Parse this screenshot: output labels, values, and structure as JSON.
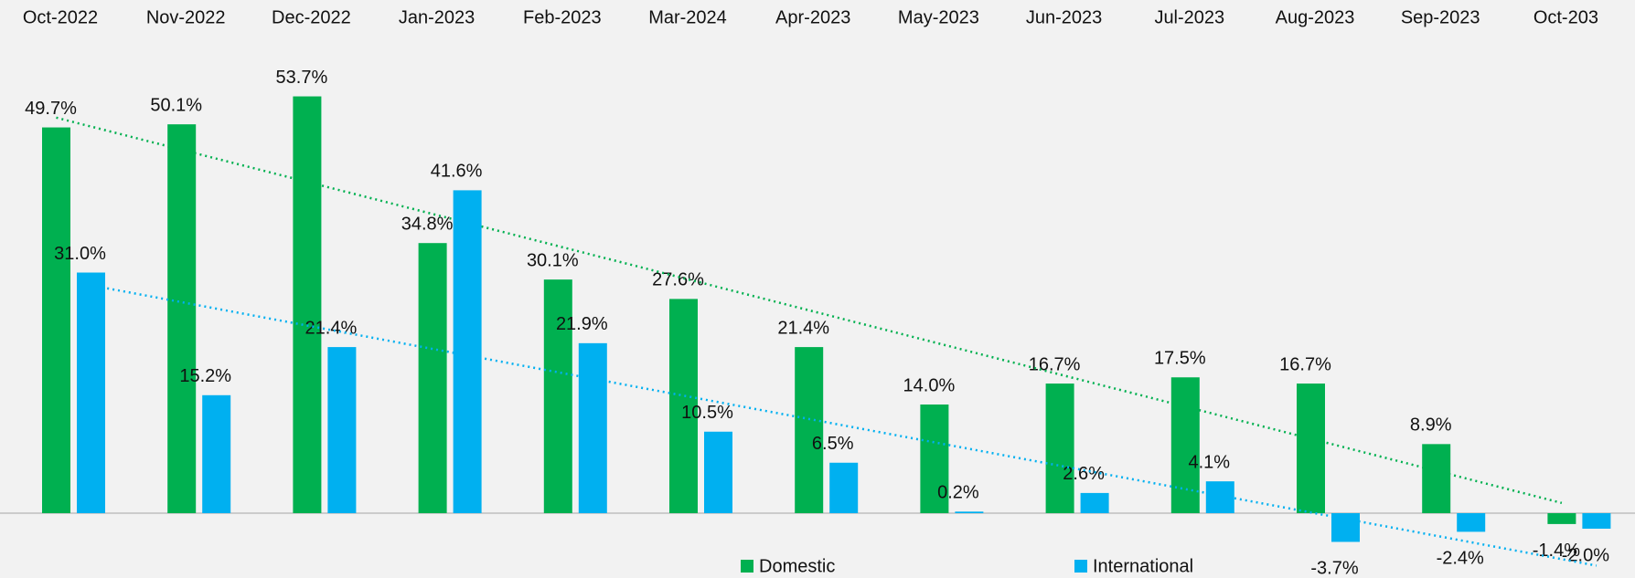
{
  "chart_data": {
    "type": "bar",
    "categories": [
      "Oct-2022",
      "Nov-2022",
      "Dec-2022",
      "Jan-2023",
      "Feb-2023",
      "Mar-2024",
      "Apr-2023",
      "May-2023",
      "Jun-2023",
      "Jul-2023",
      "Aug-2023",
      "Sep-2023",
      "Oct-203"
    ],
    "series": [
      {
        "name": "Domestic",
        "color": "#00b050",
        "values": [
          49.7,
          50.1,
          53.7,
          34.8,
          30.1,
          27.6,
          21.4,
          14.0,
          16.7,
          17.5,
          16.7,
          8.9,
          -1.4
        ],
        "value_labels": [
          "49.7%",
          "50.1%",
          "53.7%",
          "34.8%",
          "30.1%",
          "27.6%",
          "21.4%",
          "14.0%",
          "16.7%",
          "17.5%",
          "16.7%",
          "8.9%",
          "-1.4%"
        ]
      },
      {
        "name": "International",
        "color": "#00b0f0",
        "values": [
          31.0,
          15.2,
          21.4,
          41.6,
          21.9,
          10.5,
          6.5,
          0.2,
          2.6,
          4.1,
          -3.7,
          -2.4,
          -2.0
        ],
        "value_labels": [
          "31.0%",
          "15.2%",
          "21.4%",
          "41.6%",
          "21.9%",
          "10.5%",
          "6.5%",
          "0.2%",
          "2.6%",
          "4.1%",
          "-3.7%",
          "-2.4%",
          "-2.0%"
        ]
      }
    ],
    "trendline": true,
    "legend": "bottom"
  }
}
